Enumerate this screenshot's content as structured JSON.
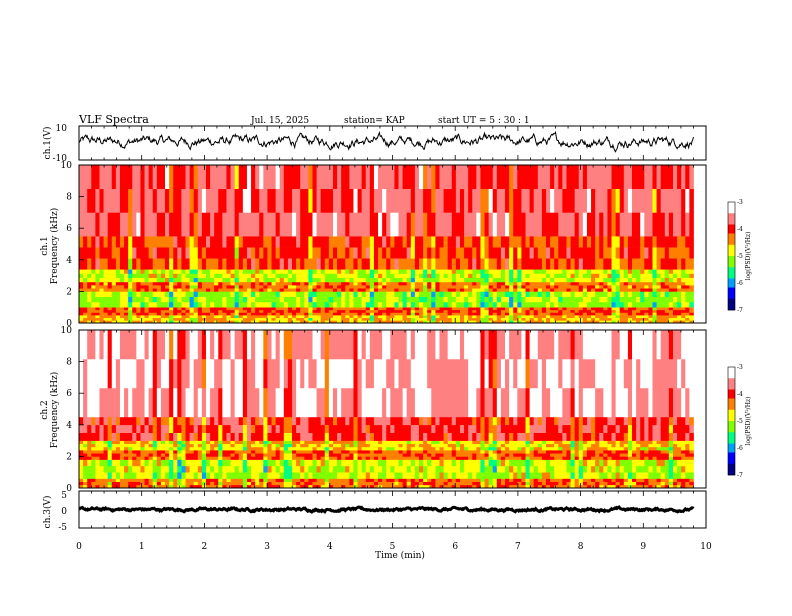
{
  "header": {
    "title": "VLF Spectra",
    "date": "Jul. 15, 2025",
    "station": "station= KAP",
    "start": "start UT =  5 : 30 : 1"
  },
  "colors": {
    "background": "#ffffff",
    "trace": "#000000",
    "colormap": [
      "#000080",
      "#0000ff",
      "#00a0ff",
      "#00ff80",
      "#80ff00",
      "#ffff00",
      "#ff8000",
      "#ff0000",
      "#ff8080",
      "#ffffff"
    ]
  },
  "chart_data": [
    {
      "type": "line",
      "name": "ch1-waveform",
      "ylabel": "ch.1(V)",
      "ylim": [
        -10,
        10
      ],
      "yticks": [
        "10",
        "-10"
      ],
      "xlim": [
        0,
        10
      ],
      "x_extent_data_min": 9.8,
      "approx_center_v": 1.0,
      "approx_amplitude_v": 4.5
    },
    {
      "type": "heatmap",
      "name": "ch1-spectrogram",
      "ylabel_top": "ch.1",
      "ylabel": "Frequency (kHz)",
      "ylim": [
        0,
        10
      ],
      "yticks": [
        "0",
        "2",
        "4",
        "6",
        "8",
        "10"
      ],
      "xlim": [
        0,
        10
      ],
      "colorbar": {
        "label": "log(PSD)(V²/Hz)",
        "range": [
          -7,
          -3
        ],
        "ticks": [
          "-3",
          "-4",
          "-5",
          "-6",
          "-7"
        ]
      },
      "bands_khz": [
        {
          "from": 0,
          "to": 0.5,
          "level": -4.6
        },
        {
          "from": 0.5,
          "to": 1.0,
          "level": -4.2
        },
        {
          "from": 1.0,
          "to": 2.0,
          "level": -5.1
        },
        {
          "from": 2.0,
          "to": 2.6,
          "level": -4.3
        },
        {
          "from": 2.6,
          "to": 3.4,
          "level": -4.9
        },
        {
          "from": 3.4,
          "to": 5.5,
          "level": -4.1
        },
        {
          "from": 5.5,
          "to": 10.0,
          "level": -3.7
        }
      ]
    },
    {
      "type": "heatmap",
      "name": "ch2-spectrogram",
      "ylabel_top": "ch.2",
      "ylabel": "Frequency (kHz)",
      "ylim": [
        0,
        10
      ],
      "yticks": [
        "0",
        "2",
        "4",
        "6",
        "8",
        "10"
      ],
      "xlim": [
        0,
        10
      ],
      "colorbar": {
        "label": "log(PSD)(V²/Hz)",
        "range": [
          -7,
          -3
        ],
        "ticks": [
          "-3",
          "-4",
          "-5",
          "-6",
          "-7"
        ]
      },
      "bands_khz": [
        {
          "from": 0,
          "to": 0.6,
          "level": -4.3
        },
        {
          "from": 0.6,
          "to": 1.8,
          "level": -4.9
        },
        {
          "from": 1.8,
          "to": 2.4,
          "level": -4.2
        },
        {
          "from": 2.4,
          "to": 3.0,
          "level": -4.7
        },
        {
          "from": 3.0,
          "to": 4.5,
          "level": -3.9
        },
        {
          "from": 4.5,
          "to": 10.0,
          "level": -3.4
        }
      ]
    },
    {
      "type": "line",
      "name": "ch3-waveform",
      "ylabel": "ch.3(V)",
      "ylim": [
        -5,
        5
      ],
      "yticks": [
        "5",
        "0",
        "-5"
      ],
      "xlim": [
        0,
        10
      ],
      "x_extent_data_min": 9.8,
      "approx_center_v": 0.0,
      "approx_amplitude_v": 0.6
    }
  ],
  "x_axis": {
    "label": "Time (min)",
    "ticks": [
      "0",
      "1",
      "2",
      "3",
      "4",
      "5",
      "6",
      "7",
      "8",
      "9",
      "10"
    ]
  }
}
